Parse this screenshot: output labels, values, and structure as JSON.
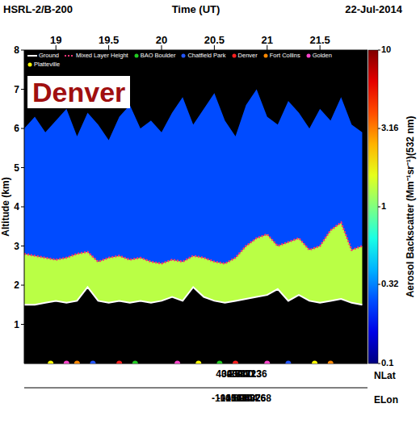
{
  "chart_data": {
    "type": "curtain",
    "title": "HSRL-2/B-200",
    "date": "22-Jul-2014",
    "annotation": "Denver",
    "x_label": "Time (UT)",
    "y_label": "Altitude (km)",
    "x": [
      18.7,
      18.8,
      18.9,
      19.0,
      19.1,
      19.2,
      19.3,
      19.4,
      19.5,
      19.6,
      19.7,
      19.8,
      19.9,
      20.0,
      20.1,
      20.2,
      20.3,
      20.4,
      20.5,
      20.6,
      20.7,
      20.8,
      20.9,
      21.0,
      21.1,
      21.2,
      21.3,
      21.4,
      21.5,
      21.6,
      21.7,
      21.8,
      21.9
    ],
    "series": [
      {
        "name": "Ground",
        "color": "#ffffff",
        "line_style": "solid",
        "values": [
          1.5,
          1.5,
          1.55,
          1.6,
          1.55,
          1.6,
          1.95,
          1.6,
          1.55,
          1.6,
          1.55,
          1.6,
          1.55,
          1.6,
          1.7,
          1.6,
          1.95,
          1.7,
          1.6,
          1.55,
          1.6,
          1.65,
          1.7,
          1.75,
          1.9,
          1.6,
          1.75,
          1.6,
          1.55,
          1.6,
          1.65,
          1.55,
          1.5
        ]
      },
      {
        "name": "Mixed Layer Height",
        "color": "#ff3377",
        "line_style": "dotted",
        "values": [
          2.8,
          2.75,
          2.7,
          2.65,
          2.7,
          2.8,
          2.85,
          2.6,
          2.7,
          2.75,
          2.65,
          2.7,
          2.6,
          2.55,
          2.65,
          2.6,
          2.75,
          2.7,
          2.6,
          2.55,
          2.7,
          3.0,
          3.2,
          3.3,
          3.0,
          3.1,
          3.2,
          2.9,
          3.0,
          3.4,
          3.6,
          2.9,
          3.0
        ]
      }
    ],
    "aerosol_top": [
      6.0,
      6.3,
      5.9,
      6.2,
      6.5,
      5.8,
      6.4,
      6.1,
      5.7,
      6.3,
      6.6,
      6.0,
      6.2,
      5.9,
      6.4,
      6.8,
      6.1,
      6.5,
      6.9,
      6.2,
      5.8,
      6.6,
      7.0,
      6.3,
      6.1,
      6.7,
      6.4,
      6.0,
      6.5,
      6.2,
      6.8,
      6.1,
      5.9
    ],
    "backscatter": {
      "mixed_layer": 1.3,
      "aloft": 0.25
    },
    "colorbar_label": "Aerosol Backscatter (Mm⁻¹sr⁻¹)(532 nm)",
    "colorbar_range": [
      0.1,
      10
    ],
    "colorbar_ticks": [
      0.1,
      0.32,
      1,
      3.16,
      10
    ],
    "sites": [
      {
        "name": "BAO Boulder",
        "color": "#22cc22"
      },
      {
        "name": "Chatfield Park",
        "color": "#2255ff"
      },
      {
        "name": "Denver",
        "color": "#ff2020"
      },
      {
        "name": "Fort Collins",
        "color": "#ff8800"
      },
      {
        "name": "Golden",
        "color": "#ff44cc"
      },
      {
        "name": "Platteville",
        "color": "#ffff00"
      }
    ],
    "site_passes": [
      {
        "x": 18.95,
        "site": "Platteville"
      },
      {
        "x": 19.1,
        "site": "Golden"
      },
      {
        "x": 19.2,
        "site": "Fort Collins"
      },
      {
        "x": 19.35,
        "site": "Chatfield Park"
      },
      {
        "x": 19.6,
        "site": "Denver"
      },
      {
        "x": 19.75,
        "site": "BAO Boulder"
      },
      {
        "x": 20.15,
        "site": "Golden"
      },
      {
        "x": 20.35,
        "site": "Platteville"
      },
      {
        "x": 20.55,
        "site": "BAO Boulder"
      },
      {
        "x": 20.7,
        "site": "Denver"
      },
      {
        "x": 21.0,
        "site": "Golden"
      },
      {
        "x": 21.2,
        "site": "Chatfield Park"
      },
      {
        "x": 21.45,
        "site": "Platteville"
      },
      {
        "x": 21.6,
        "site": "Fort Collins"
      }
    ],
    "nav": {
      "x": [
        19,
        19.5,
        20,
        20.5,
        21,
        21.5
      ],
      "rows": [
        {
          "label": "NLat",
          "values": [
            40.27,
            39.63,
            40.41,
            39.71,
            40.23,
            40.36
          ]
        },
        {
          "label": "ELon",
          "values": [
            -104.69,
            -105.04,
            -104.63,
            -105.02,
            -104.76,
            -104.68
          ]
        }
      ]
    },
    "xlim": [
      18.7,
      21.95
    ],
    "xticks": [
      19,
      19.5,
      20,
      20.5,
      21,
      21.5
    ],
    "ylim": [
      0,
      8
    ],
    "yticks": [
      1,
      2,
      3,
      4,
      5,
      6,
      7,
      8
    ],
    "legend": "top",
    "grid": false
  }
}
